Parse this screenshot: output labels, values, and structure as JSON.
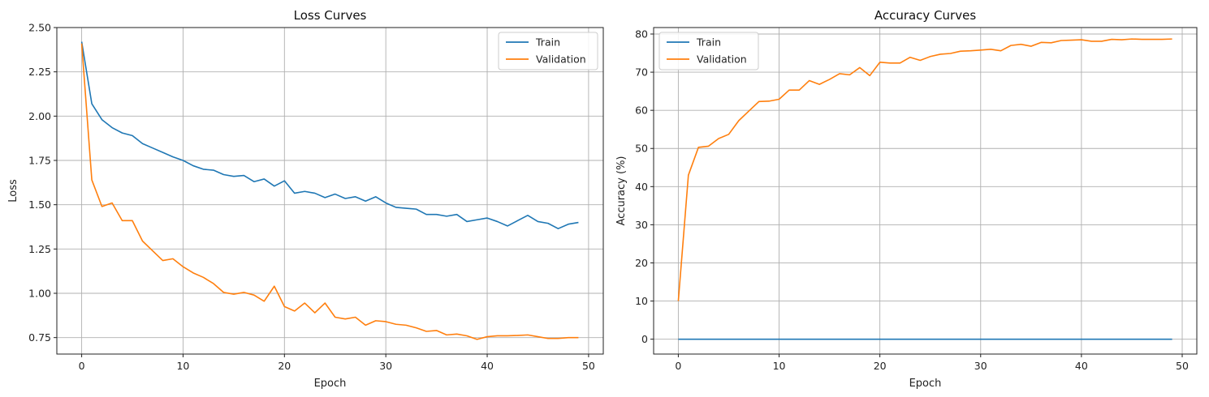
{
  "chart_data": [
    {
      "type": "line",
      "title": "Loss Curves",
      "xlabel": "Epoch",
      "ylabel": "Loss",
      "xlim": [
        -2.45,
        51.45
      ],
      "ylim": [
        0.657,
        2.5
      ],
      "xticks": [
        0,
        10,
        20,
        30,
        40,
        50
      ],
      "yticks": [
        0.75,
        1.0,
        1.25,
        1.5,
        1.75,
        2.0,
        2.25,
        2.5
      ],
      "ytick_labels": [
        "0.75",
        "1.00",
        "1.25",
        "1.50",
        "1.75",
        "2.00",
        "2.25",
        "2.50"
      ],
      "grid": true,
      "legend": "upper right",
      "series": [
        {
          "name": "Train",
          "color": "#1f77b4",
          "x": [
            0,
            1,
            2,
            3,
            4,
            5,
            6,
            7,
            8,
            9,
            10,
            11,
            12,
            13,
            14,
            15,
            16,
            17,
            18,
            19,
            20,
            21,
            22,
            23,
            24,
            25,
            26,
            27,
            28,
            29,
            30,
            31,
            32,
            33,
            34,
            35,
            36,
            37,
            38,
            39,
            40,
            41,
            42,
            43,
            44,
            45,
            46,
            47,
            48,
            49
          ],
          "y": [
            2.42,
            2.07,
            1.98,
            1.935,
            1.905,
            1.89,
            1.845,
            1.82,
            1.795,
            1.77,
            1.75,
            1.72,
            1.7,
            1.695,
            1.67,
            1.66,
            1.665,
            1.63,
            1.645,
            1.605,
            1.635,
            1.565,
            1.575,
            1.565,
            1.54,
            1.56,
            1.535,
            1.545,
            1.52,
            1.545,
            1.51,
            1.485,
            1.48,
            1.475,
            1.445,
            1.445,
            1.435,
            1.445,
            1.405,
            1.415,
            1.425,
            1.405,
            1.38,
            1.41,
            1.44,
            1.405,
            1.395,
            1.365,
            1.39,
            1.4
          ]
        },
        {
          "name": "Validation",
          "color": "#ff7f0e",
          "x": [
            0,
            1,
            2,
            3,
            4,
            5,
            6,
            7,
            8,
            9,
            10,
            11,
            12,
            13,
            14,
            15,
            16,
            17,
            18,
            19,
            20,
            21,
            22,
            23,
            24,
            25,
            26,
            27,
            28,
            29,
            30,
            31,
            32,
            33,
            34,
            35,
            36,
            37,
            38,
            39,
            40,
            41,
            42,
            43,
            44,
            45,
            46,
            47,
            48,
            49
          ],
          "y": [
            2.41,
            1.64,
            1.49,
            1.51,
            1.41,
            1.41,
            1.295,
            1.24,
            1.185,
            1.195,
            1.15,
            1.115,
            1.09,
            1.055,
            1.005,
            0.995,
            1.005,
            0.99,
            0.955,
            1.04,
            0.925,
            0.9,
            0.945,
            0.89,
            0.945,
            0.865,
            0.855,
            0.865,
            0.82,
            0.845,
            0.84,
            0.825,
            0.82,
            0.805,
            0.785,
            0.79,
            0.765,
            0.77,
            0.76,
            0.74,
            0.755,
            0.76,
            0.76,
            0.762,
            0.765,
            0.755,
            0.745,
            0.745,
            0.75,
            0.75
          ]
        }
      ]
    },
    {
      "type": "line",
      "title": "Accuracy Curves",
      "xlabel": "Epoch",
      "ylabel": "Accuracy (%)",
      "xlim": [
        -2.45,
        51.45
      ],
      "ylim": [
        -3.9,
        81.7
      ],
      "xticks": [
        0,
        10,
        20,
        30,
        40,
        50
      ],
      "yticks": [
        0,
        10,
        20,
        30,
        40,
        50,
        60,
        70,
        80
      ],
      "ytick_labels": [
        "0",
        "10",
        "20",
        "30",
        "40",
        "50",
        "60",
        "70",
        "80"
      ],
      "grid": true,
      "legend": "upper left",
      "series": [
        {
          "name": "Train",
          "color": "#1f77b4",
          "x": [
            0,
            1,
            2,
            3,
            4,
            5,
            6,
            7,
            8,
            9,
            10,
            11,
            12,
            13,
            14,
            15,
            16,
            17,
            18,
            19,
            20,
            21,
            22,
            23,
            24,
            25,
            26,
            27,
            28,
            29,
            30,
            31,
            32,
            33,
            34,
            35,
            36,
            37,
            38,
            39,
            40,
            41,
            42,
            43,
            44,
            45,
            46,
            47,
            48,
            49
          ],
          "y": [
            0,
            0,
            0,
            0,
            0,
            0,
            0,
            0,
            0,
            0,
            0,
            0,
            0,
            0,
            0,
            0,
            0,
            0,
            0,
            0,
            0,
            0,
            0,
            0,
            0,
            0,
            0,
            0,
            0,
            0,
            0,
            0,
            0,
            0,
            0,
            0,
            0,
            0,
            0,
            0,
            0,
            0,
            0,
            0,
            0,
            0,
            0,
            0,
            0,
            0
          ]
        },
        {
          "name": "Validation",
          "color": "#ff7f0e",
          "x": [
            0,
            1,
            2,
            3,
            4,
            5,
            6,
            7,
            8,
            9,
            10,
            11,
            12,
            13,
            14,
            15,
            16,
            17,
            18,
            19,
            20,
            21,
            22,
            23,
            24,
            25,
            26,
            27,
            28,
            29,
            30,
            31,
            32,
            33,
            34,
            35,
            36,
            37,
            38,
            39,
            40,
            41,
            42,
            43,
            44,
            45,
            46,
            47,
            48,
            49
          ],
          "y": [
            10,
            43,
            50.3,
            50.6,
            52.6,
            53.7,
            57.3,
            59.8,
            62.3,
            62.4,
            62.9,
            65.3,
            65.3,
            67.8,
            66.8,
            68.1,
            69.6,
            69.3,
            71.2,
            69.1,
            72.6,
            72.4,
            72.4,
            73.9,
            73.1,
            74.1,
            74.7,
            74.9,
            75.5,
            75.6,
            75.8,
            76.0,
            75.6,
            77.0,
            77.3,
            76.8,
            77.8,
            77.7,
            78.3,
            78.4,
            78.5,
            78.1,
            78.1,
            78.6,
            78.5,
            78.7,
            78.6,
            78.6,
            78.6,
            78.7
          ]
        }
      ]
    }
  ]
}
